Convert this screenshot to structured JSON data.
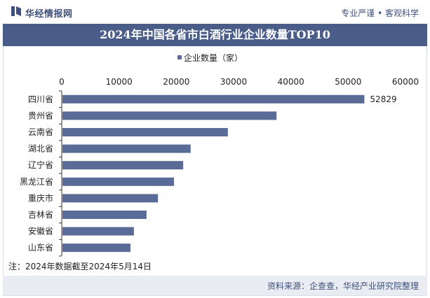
{
  "header": {
    "brand": "华经情报网",
    "slogan": "专业严谨 • 客观科学"
  },
  "footer": {
    "note": "注：2024年数据截至2024年5月14日",
    "source": "资料来源：企查查，华经产业研究院整理"
  },
  "colors": {
    "bar": "#5b6b97",
    "header_bg": "#4a5d89",
    "footer_bg": "#e9ecf3"
  },
  "chart_data": {
    "type": "bar",
    "orientation": "horizontal",
    "title": "2024年中国各省市白酒行业企业数量TOP10",
    "series": [
      {
        "name": "企业数量（家）",
        "values": [
          52829,
          37500,
          29000,
          22500,
          21200,
          19600,
          16800,
          14800,
          12600,
          12000
        ]
      }
    ],
    "categories": [
      "四川省",
      "贵州省",
      "云南省",
      "湖北省",
      "辽宁省",
      "黑龙江省",
      "重庆市",
      "吉林省",
      "安徽省",
      "山东省"
    ],
    "data_labels": [
      "52829"
    ],
    "x_ticks": [
      "0",
      "10000",
      "20000",
      "30000",
      "40000",
      "50000",
      "60000"
    ],
    "xlim": [
      0,
      60000
    ],
    "legend_position": "top",
    "grid": false
  }
}
